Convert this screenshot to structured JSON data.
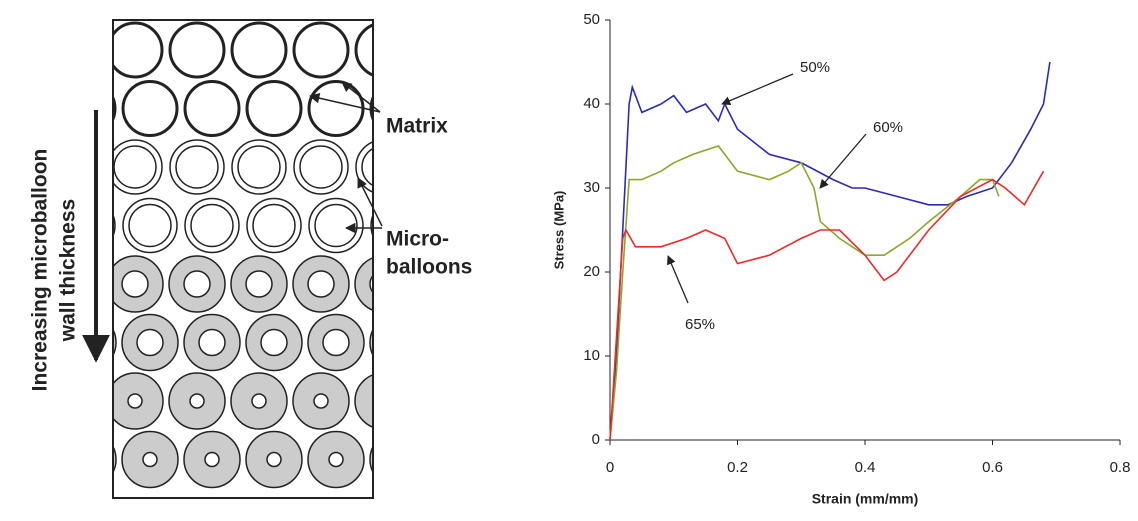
{
  "diagram": {
    "axis_label": [
      "Increasing microballoon",
      "wall thickness"
    ],
    "matrix_label": "Matrix",
    "micro_label": [
      "Micro-",
      "balloons"
    ]
  },
  "chart_data": {
    "type": "line",
    "xlabel": "Strain (mm/mm)",
    "ylabel": "Stress (MPa)",
    "xlim": [
      0,
      0.8
    ],
    "xticks": [
      0,
      0.2,
      0.4,
      0.6,
      0.8
    ],
    "ylim": [
      0,
      50
    ],
    "yticks": [
      0,
      10,
      20,
      30,
      40,
      50
    ],
    "series": [
      {
        "name": "50%",
        "color": "#2b2bb8",
        "x": [
          0,
          0.01,
          0.02,
          0.03,
          0.035,
          0.05,
          0.08,
          0.1,
          0.12,
          0.15,
          0.17,
          0.18,
          0.2,
          0.25,
          0.3,
          0.35,
          0.38,
          0.4,
          0.45,
          0.5,
          0.53,
          0.56,
          0.6,
          0.63,
          0.66,
          0.68,
          0.69
        ],
        "values": [
          0,
          10,
          25,
          40,
          42,
          39,
          40,
          41,
          39,
          40,
          38,
          40,
          37,
          34,
          33,
          31,
          30,
          30,
          29,
          28,
          28,
          29,
          30,
          33,
          37,
          40,
          45
        ]
      },
      {
        "name": "60%",
        "color": "#8aa829",
        "x": [
          0,
          0.01,
          0.02,
          0.03,
          0.05,
          0.08,
          0.1,
          0.13,
          0.17,
          0.2,
          0.25,
          0.28,
          0.3,
          0.32,
          0.33,
          0.36,
          0.4,
          0.43,
          0.47,
          0.5,
          0.55,
          0.58,
          0.6,
          0.61
        ],
        "values": [
          0,
          8,
          20,
          31,
          31,
          32,
          33,
          34,
          35,
          32,
          31,
          32,
          33,
          30,
          26,
          24,
          22,
          22,
          24,
          26,
          29,
          31,
          31,
          29
        ]
      },
      {
        "name": "65%",
        "color": "#ee2a2a",
        "x": [
          0,
          0.01,
          0.02,
          0.025,
          0.04,
          0.08,
          0.12,
          0.15,
          0.18,
          0.2,
          0.25,
          0.3,
          0.33,
          0.36,
          0.4,
          0.43,
          0.45,
          0.5,
          0.55,
          0.6,
          0.62,
          0.65,
          0.68
        ],
        "values": [
          0,
          12,
          24,
          25,
          23,
          23,
          24,
          25,
          24,
          21,
          22,
          24,
          25,
          25,
          22,
          19,
          20,
          25,
          29,
          31,
          30,
          28,
          32
        ]
      }
    ]
  }
}
